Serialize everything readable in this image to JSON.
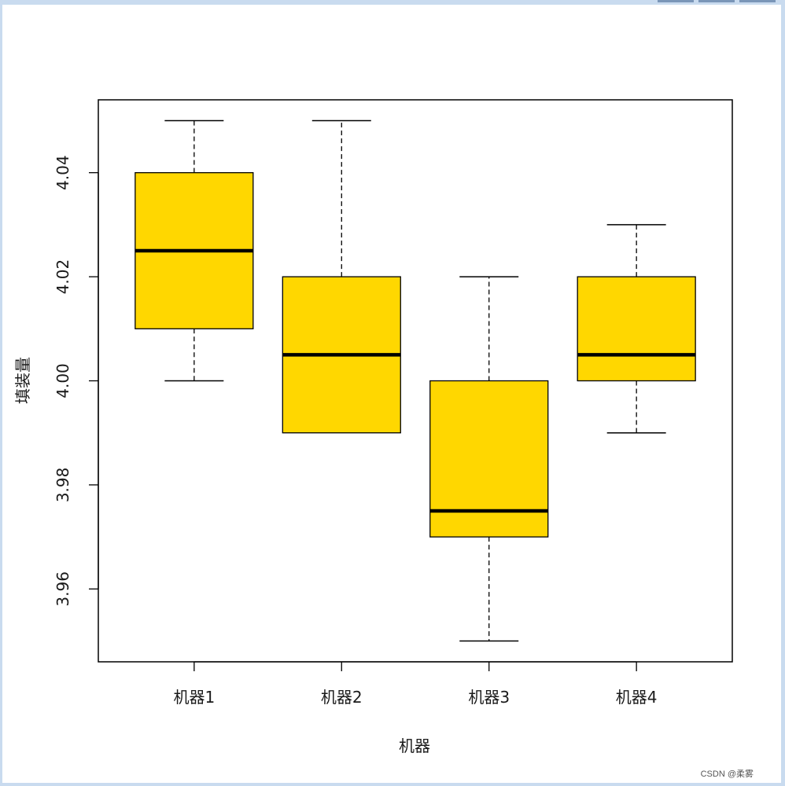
{
  "watermark": "CSDN @柔雾",
  "chart_data": {
    "type": "boxplot",
    "xlabel": "机器",
    "ylabel": "填装量",
    "ylim": [
      3.946,
      4.054
    ],
    "yticks": [
      "3.96",
      "3.98",
      "4.00",
      "4.02",
      "4.04"
    ],
    "box_color": "#ffd700",
    "grid": false,
    "series": [
      {
        "name": "机器1",
        "min": 4.0,
        "q1": 4.01,
        "median": 4.025,
        "q3": 4.04,
        "max": 4.05
      },
      {
        "name": "机器2",
        "min": 3.99,
        "q1": 3.99,
        "median": 4.005,
        "q3": 4.02,
        "max": 4.05
      },
      {
        "name": "机器3",
        "min": 3.95,
        "q1": 3.97,
        "median": 3.975,
        "q3": 4.0,
        "max": 4.02
      },
      {
        "name": "机器4",
        "min": 3.99,
        "q1": 4.0,
        "median": 4.005,
        "q3": 4.02,
        "max": 4.03
      }
    ]
  }
}
